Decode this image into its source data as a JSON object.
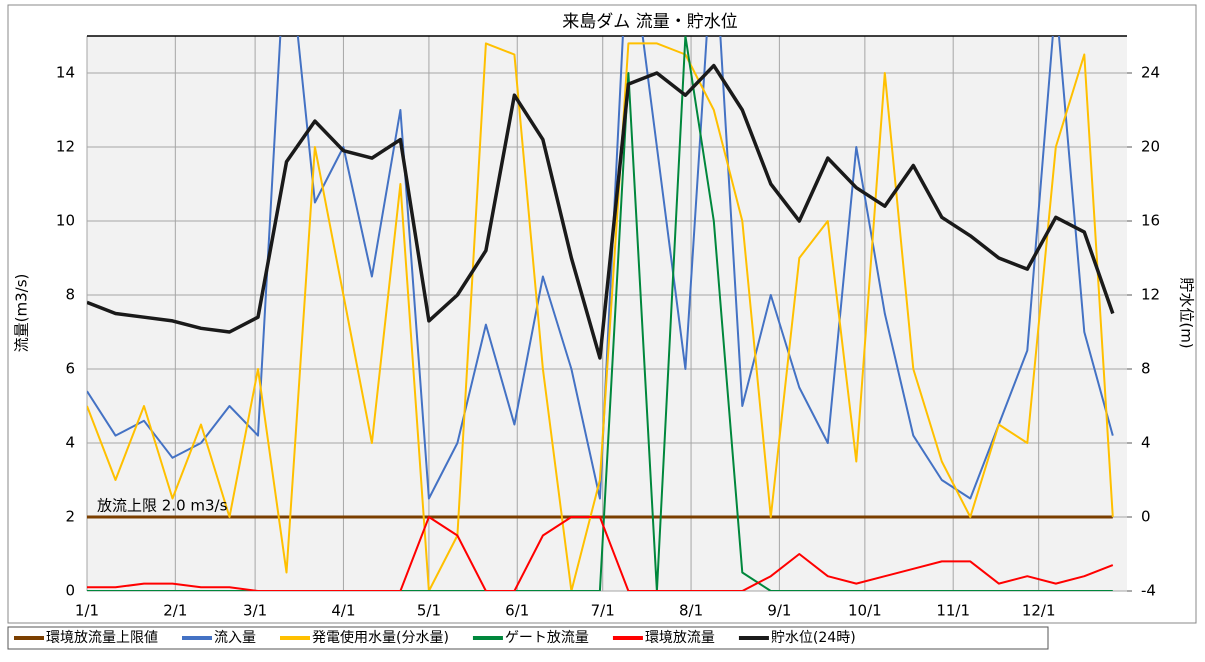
{
  "chart_data": {
    "type": "line",
    "title": "来島ダム 流量・貯水位",
    "ylabel": "流量(m3/s)",
    "y2label": "貯水位(m)",
    "annotation": "放流上限 2.0 m3/s",
    "grid": true,
    "legend": "bottom",
    "xlim": [
      0,
      365
    ],
    "xticks": [
      {
        "value": 0,
        "label": "1/1"
      },
      {
        "value": 31,
        "label": "2/1"
      },
      {
        "value": 59,
        "label": "3/1"
      },
      {
        "value": 90,
        "label": "4/1"
      },
      {
        "value": 120,
        "label": "5/1"
      },
      {
        "value": 151,
        "label": "6/1"
      },
      {
        "value": 181,
        "label": "7/1"
      },
      {
        "value": 212,
        "label": "8/1"
      },
      {
        "value": 243,
        "label": "9/1"
      },
      {
        "value": 273,
        "label": "10/1"
      },
      {
        "value": 304,
        "label": "11/1"
      },
      {
        "value": 334,
        "label": "12/1"
      }
    ],
    "ylim": [
      0,
      15
    ],
    "yticks": [
      0,
      2,
      4,
      6,
      8,
      10,
      12,
      14
    ],
    "y2lim": [
      -4,
      26
    ],
    "y2ticks": [
      -4,
      0,
      4,
      8,
      12,
      16,
      20,
      24
    ],
    "x": [
      0,
      10,
      20,
      30,
      40,
      50,
      60,
      70,
      80,
      90,
      100,
      110,
      120,
      130,
      140,
      150,
      160,
      170,
      180,
      190,
      200,
      210,
      220,
      230,
      240,
      250,
      260,
      270,
      280,
      290,
      300,
      310,
      320,
      330,
      340,
      350,
      360
    ],
    "series": [
      {
        "name": "環境放流量上限値",
        "color": "#7b3f00",
        "values": [
          2,
          2,
          2,
          2,
          2,
          2,
          2,
          2,
          2,
          2,
          2,
          2,
          2,
          2,
          2,
          2,
          2,
          2,
          2,
          2,
          2,
          2,
          2,
          2,
          2,
          2,
          2,
          2,
          2,
          2,
          2,
          2,
          2,
          2,
          2,
          2,
          2
        ]
      },
      {
        "name": "流入量",
        "color": "#4472c4",
        "values": [
          5.4,
          4.2,
          4.6,
          3.6,
          4.0,
          5.0,
          4.2,
          18,
          10.5,
          12,
          8.5,
          13,
          2.5,
          4.0,
          7.2,
          4.5,
          8.5,
          6.0,
          2.5,
          18,
          12,
          6,
          18,
          5.0,
          8.0,
          5.5,
          4.0,
          12,
          7.5,
          4.2,
          3.0,
          2.5,
          4.5,
          6.5,
          16,
          7.0,
          4.2
        ]
      },
      {
        "name": "発電使用水量(分水量)",
        "color": "#ffc000",
        "values": [
          5,
          3,
          5,
          2.5,
          4.5,
          2,
          6,
          0.5,
          12,
          8,
          4,
          11,
          0,
          1.5,
          14.8,
          14.5,
          6,
          0,
          3,
          14.8,
          14.8,
          14.5,
          13,
          10,
          2,
          9,
          10,
          3.5,
          14,
          6,
          3.5,
          2,
          4.5,
          4,
          12,
          14.5,
          2
        ]
      },
      {
        "name": "ゲート放流量",
        "color": "#00873c",
        "values": [
          0,
          0,
          0,
          0,
          0,
          0,
          0,
          0,
          0,
          0,
          0,
          0,
          0,
          0,
          0,
          0,
          0,
          0,
          0,
          14,
          0,
          15,
          10,
          0.5,
          0,
          0,
          0,
          0,
          0,
          0,
          0,
          0,
          0,
          0,
          0,
          0,
          0
        ]
      },
      {
        "name": "環境放流量",
        "color": "#ff0000",
        "values": [
          0.1,
          0.1,
          0.2,
          0.2,
          0.1,
          0.1,
          0,
          0,
          0,
          0,
          0,
          0,
          2.0,
          1.5,
          0,
          0,
          1.5,
          2.0,
          2.0,
          0,
          0,
          0,
          0,
          0,
          0.4,
          1.0,
          0.4,
          0.2,
          0.4,
          0.6,
          0.8,
          0.8,
          0.2,
          0.4,
          0.2,
          0.4,
          0.7
        ]
      },
      {
        "name": "貯水位(24時)",
        "color": "#1a1a1a",
        "axis": "y2",
        "values": [
          11.6,
          11.0,
          10.8,
          10.6,
          10.2,
          10.0,
          10.8,
          19.2,
          21.4,
          19.8,
          19.4,
          20.4,
          10.6,
          12.0,
          14.4,
          22.8,
          20.4,
          14.0,
          8.6,
          23.4,
          24.0,
          22.8,
          24.4,
          22.0,
          18.0,
          16.0,
          19.4,
          17.8,
          16.8,
          19.0,
          16.2,
          15.2,
          14.0,
          13.4,
          16.2,
          15.4,
          11.0
        ]
      }
    ]
  }
}
